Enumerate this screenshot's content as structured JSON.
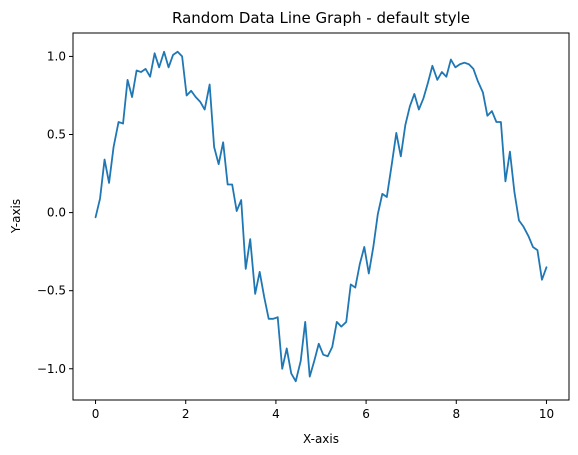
{
  "chart_data": {
    "type": "line",
    "title": "Random Data Line Graph - default style",
    "xlabel": "X-axis",
    "ylabel": "Y-axis",
    "xlim": [
      -0.5,
      10.5
    ],
    "ylim": [
      -1.2,
      1.15
    ],
    "grid": false,
    "x_ticks": [
      0,
      2,
      4,
      6,
      8,
      10
    ],
    "x_tick_labels": [
      "0",
      "2",
      "4",
      "6",
      "8",
      "10"
    ],
    "y_ticks": [
      -1.0,
      -0.5,
      0.0,
      0.5,
      1.0
    ],
    "y_tick_labels": [
      "−1.0",
      "−0.5",
      "0.0",
      "0.5",
      "1.0"
    ],
    "series": [
      {
        "color": "#1f77b4",
        "x": [
          0.0,
          0.1,
          0.2,
          0.3,
          0.4,
          0.51,
          0.61,
          0.71,
          0.81,
          0.91,
          1.01,
          1.11,
          1.21,
          1.31,
          1.41,
          1.52,
          1.62,
          1.72,
          1.82,
          1.92,
          2.02,
          2.12,
          2.22,
          2.32,
          2.42,
          2.53,
          2.63,
          2.73,
          2.83,
          2.93,
          3.03,
          3.13,
          3.23,
          3.33,
          3.43,
          3.54,
          3.64,
          3.74,
          3.84,
          3.94,
          4.04,
          4.14,
          4.24,
          4.34,
          4.44,
          4.55,
          4.65,
          4.75,
          4.85,
          4.95,
          5.05,
          5.15,
          5.25,
          5.35,
          5.45,
          5.56,
          5.66,
          5.76,
          5.86,
          5.96,
          6.06,
          6.16,
          6.26,
          6.36,
          6.46,
          6.57,
          6.67,
          6.77,
          6.87,
          6.97,
          7.07,
          7.17,
          7.27,
          7.37,
          7.47,
          7.58,
          7.68,
          7.78,
          7.88,
          7.98,
          8.08,
          8.18,
          8.28,
          8.38,
          8.48,
          8.59,
          8.69,
          8.79,
          8.89,
          8.99,
          9.09,
          9.19,
          9.29,
          9.39,
          9.49,
          9.6,
          9.7,
          9.8,
          9.9,
          10.0
        ],
        "y": [
          -0.03,
          0.09,
          0.34,
          0.19,
          0.42,
          0.58,
          0.57,
          0.85,
          0.74,
          0.91,
          0.9,
          0.92,
          0.87,
          1.02,
          0.93,
          1.03,
          0.93,
          1.01,
          1.03,
          1.0,
          0.75,
          0.78,
          0.74,
          0.71,
          0.66,
          0.82,
          0.42,
          0.31,
          0.45,
          0.18,
          0.18,
          0.01,
          0.08,
          -0.36,
          -0.17,
          -0.52,
          -0.38,
          -0.54,
          -0.68,
          -0.68,
          -0.67,
          -1.0,
          -0.87,
          -1.03,
          -1.08,
          -0.95,
          -0.7,
          -1.05,
          -0.95,
          -0.84,
          -0.91,
          -0.92,
          -0.86,
          -0.7,
          -0.73,
          -0.7,
          -0.46,
          -0.48,
          -0.33,
          -0.22,
          -0.39,
          -0.22,
          -0.01,
          0.12,
          0.1,
          0.31,
          0.51,
          0.36,
          0.56,
          0.68,
          0.76,
          0.66,
          0.73,
          0.83,
          0.94,
          0.85,
          0.9,
          0.87,
          0.98,
          0.93,
          0.95,
          0.96,
          0.95,
          0.92,
          0.84,
          0.77,
          0.62,
          0.65,
          0.58,
          0.58,
          0.2,
          0.39,
          0.13,
          -0.05,
          -0.09,
          -0.15,
          -0.22,
          -0.24,
          -0.43,
          -0.35
        ]
      }
    ]
  }
}
